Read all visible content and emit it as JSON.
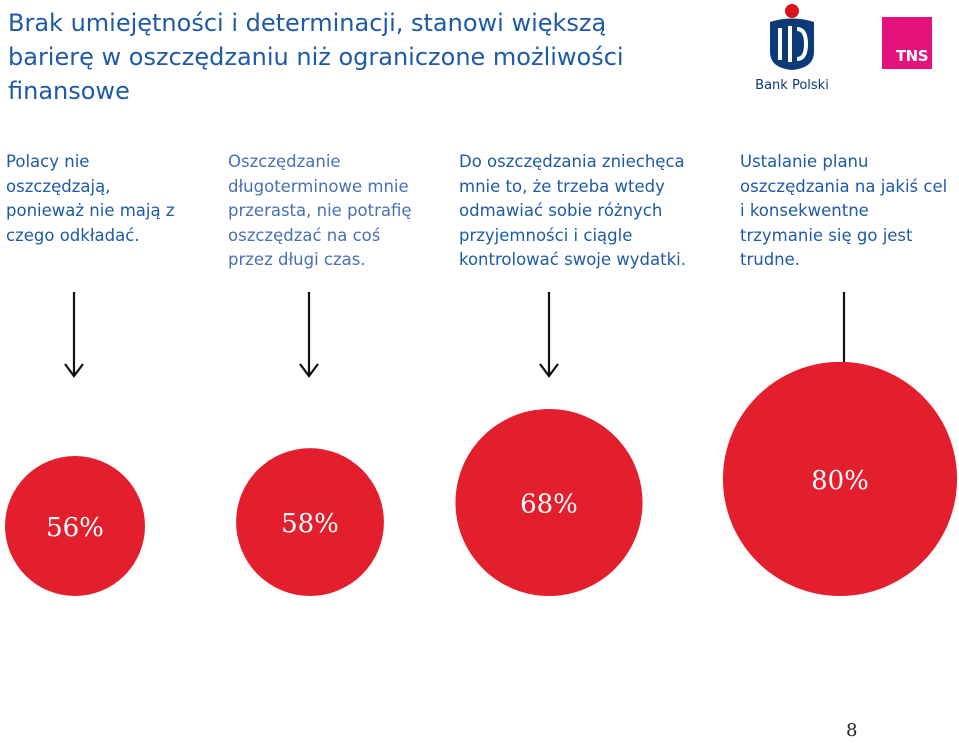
{
  "slide": {
    "title": "Brak umiejętności i determinacji, stanowi większą barierę w oszczędzaniu niż ograniczone możliwości finansowe",
    "page_number": "8"
  },
  "logos": {
    "pko_text": "Bank Polski",
    "pko_color": "#0b3a74",
    "pko_dot_color": "#d7141a",
    "tns_text": "TNS",
    "tns_color": "#e4127a"
  },
  "colors": {
    "title": "#1f5aa6",
    "bubble": "#e31e2d",
    "arrow": "#111111"
  },
  "chart_data": {
    "type": "bubble",
    "title": "Brak umiejętności i determinacji, stanowi większą barierę w oszczędzaniu niż ograniczone możliwości finansowe",
    "categories": [
      "Polacy nie oszczędzają, ponieważ nie mają z czego odkładać.",
      "Oszczędzanie długoterminowe mnie przerasta, nie potrafię oszczędzać na coś przez długi czas.",
      "Do oszczędzania zniechęca mnie to, że trzeba wtedy odmawiać sobie różnych przyjemności i ciągle kontrolować swoje wydatki.",
      "Ustalanie planu oszczędzania na jakiś cel i konsekwentne trzymanie się go jest trudne."
    ],
    "statement_lines": [
      [
        "Polacy nie",
        "oszczędzają,",
        "ponieważ nie mają z",
        "czego odkładać."
      ],
      [
        "Oszczędzanie",
        "długoterminowe mnie",
        "przerasta, nie potrafię",
        "oszczędzać na coś",
        "przez długi czas."
      ],
      [
        "Do oszczędzania zniechęca",
        "mnie to, że trzeba wtedy",
        "odmawiać sobie różnych",
        "przyjemności i ciągle",
        "kontrolować swoje wydatki."
      ],
      [
        "Ustalanie planu",
        "oszczędzania na jakiś cel",
        "i konsekwentne",
        "trzymanie się go jest",
        "trudne."
      ]
    ],
    "values": [
      56,
      58,
      68,
      80
    ],
    "labels": [
      "56%",
      "58%",
      "68%",
      "80%"
    ],
    "unit": "%",
    "encoding": "bubble size proportional to value"
  }
}
